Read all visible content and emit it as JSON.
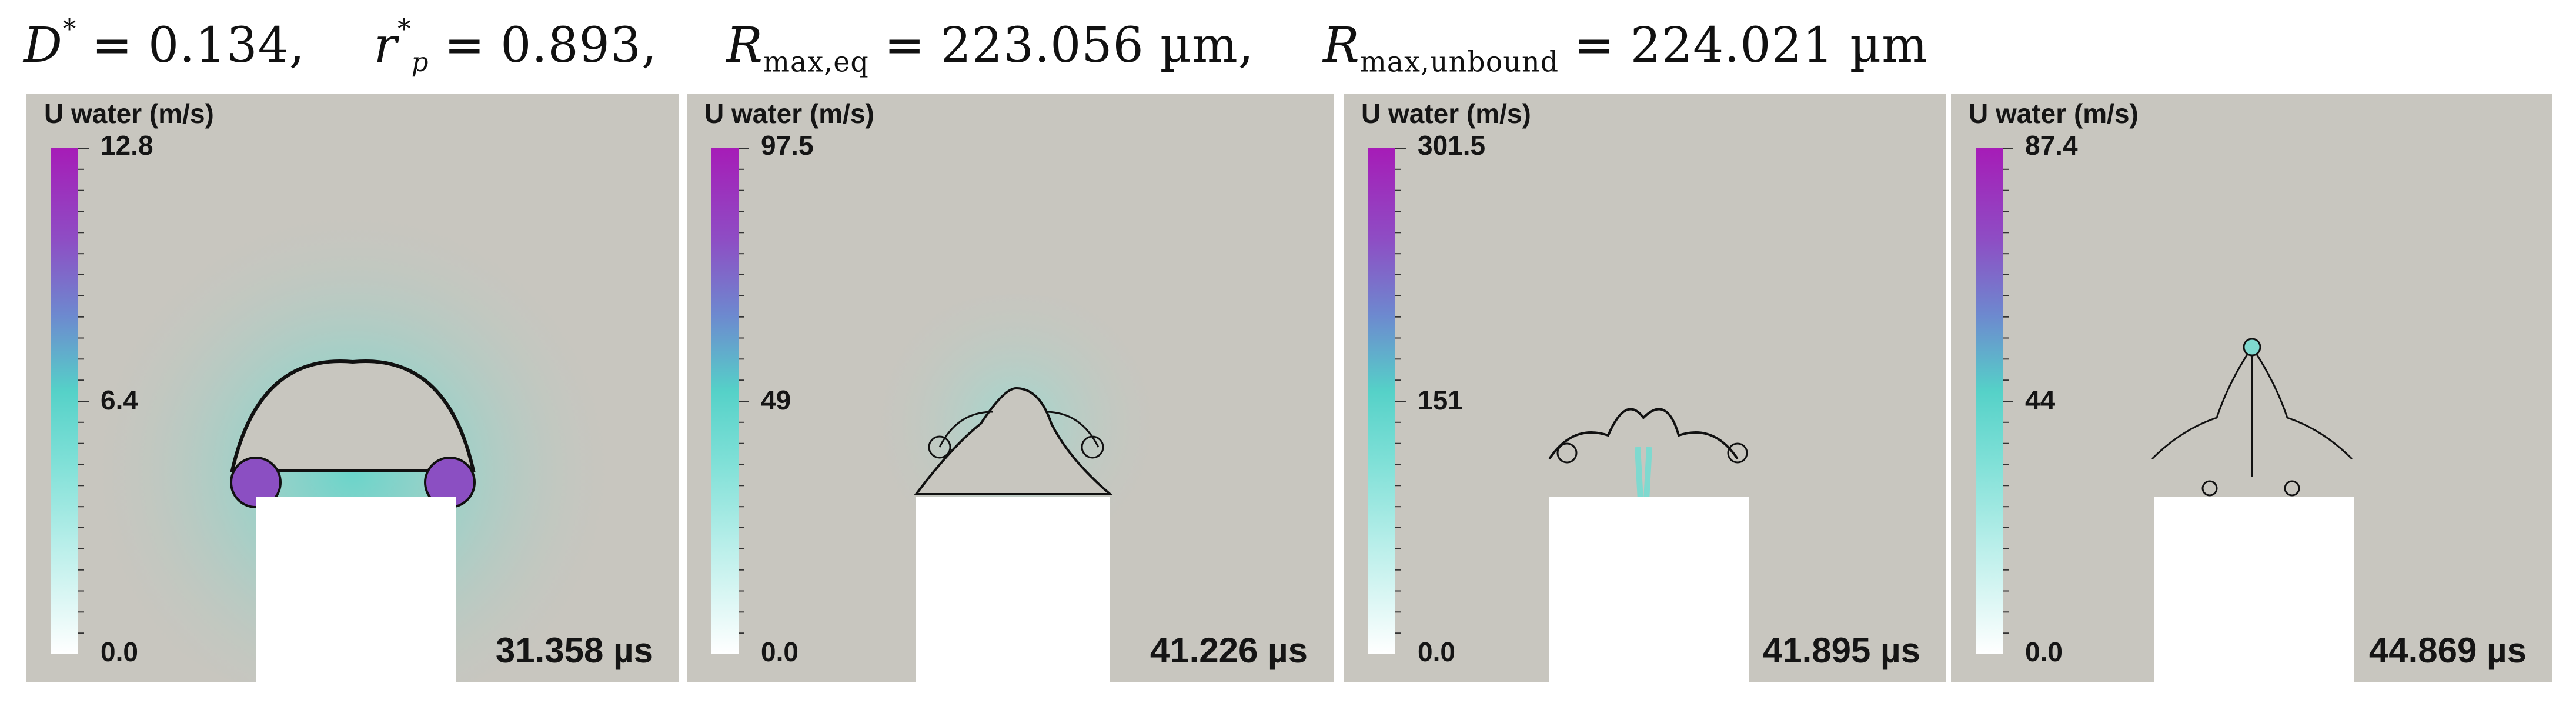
{
  "header": {
    "d_symbol": "D",
    "d_value": "0.134,",
    "rp_symbol": "r",
    "rp_sub": "p",
    "rp_value": "0.893,",
    "rmax_eq_symbol": "R",
    "rmax_eq_sub": "max,eq",
    "rmax_eq_value": "223.056 µm,",
    "rmax_unbound_symbol": "R",
    "rmax_unbound_sub": "max,unbound",
    "rmax_unbound_value": "224.021 µm"
  },
  "panels": [
    {
      "colorbar": {
        "title": "U water (m/s)",
        "max": "12.8",
        "mid": "6.4",
        "min": "0.0"
      },
      "time": "31.358 µs"
    },
    {
      "colorbar": {
        "title": "U water (m/s)",
        "max": "97.5",
        "mid": "49",
        "min": "0.0"
      },
      "time": "41.226 µs"
    },
    {
      "colorbar": {
        "title": "U water (m/s)",
        "max": "301.5",
        "mid": "151",
        "min": "0.0"
      },
      "time": "41.895 µs"
    },
    {
      "colorbar": {
        "title": "U water (m/s)",
        "max": "87.4",
        "mid": "44",
        "min": "0.0"
      },
      "time": "44.869 µs"
    }
  ],
  "colors": {
    "background": "#c8c6bf",
    "colormap_high": "#a61cb7",
    "colormap_mid": "#55d1c8",
    "colormap_low": "#ffffff",
    "solid": "#ffffff"
  }
}
